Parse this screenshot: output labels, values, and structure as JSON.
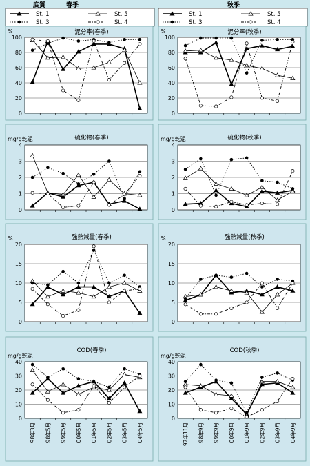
{
  "header": {
    "left_title": "底質",
    "spring": "春季",
    "autumn": "秋季"
  },
  "legend": [
    "St. 1",
    "St. 5",
    "St. 3",
    "St. 4"
  ],
  "x_labels": {
    "spring": [
      "98年3月",
      "98年5月",
      "99年5月",
      "00年5月",
      "01年5月",
      "02年5月",
      "03年5月",
      "04年5月"
    ],
    "autumn": [
      "97年11月",
      "98年9月",
      "99年9月",
      "00年9月",
      "01年9月",
      "02年9月",
      "03年9月",
      "04年9月"
    ]
  },
  "chart_data": [
    {
      "type": "line",
      "title": "泥分率(春季)",
      "unit": "%",
      "ylim": [
        0,
        100
      ],
      "yticks": [
        0,
        20,
        40,
        60,
        80,
        100
      ],
      "categories": [
        "98年3月",
        "98年5月",
        "99年5月",
        "00年5月",
        "01年5月",
        "02年5月",
        "03年5月",
        "04年5月"
      ],
      "series": [
        {
          "name": "St. 1",
          "values": [
            41,
            95,
            58,
            81,
            91,
            91,
            85,
            6
          ]
        },
        {
          "name": "St. 5",
          "values": [
            96,
            73,
            74,
            59,
            60,
            67,
            83,
            40
          ]
        },
        {
          "name": "St. 3",
          "values": [
            83,
            92,
            99,
            95,
            97,
            93,
            97,
            97
          ]
        },
        {
          "name": "St. 4",
          "values": [
            97,
            95,
            30,
            17,
            95,
            44,
            66,
            91
          ]
        }
      ]
    },
    {
      "type": "line",
      "title": "泥分率(秋季)",
      "unit": "%",
      "ylim": [
        0,
        100
      ],
      "yticks": [
        0,
        20,
        40,
        60,
        80,
        100
      ],
      "categories": [
        "97年11月",
        "98年9月",
        "99年9月",
        "00年9月",
        "01年9月",
        "02年9月",
        "03年9月",
        "04年9月"
      ],
      "series": [
        {
          "name": "St. 1",
          "values": [
            80,
            80,
            93,
            38,
            85,
            89,
            84,
            88
          ]
        },
        {
          "name": "St. 5",
          "values": [
            82,
            83,
            73,
            70,
            63,
            59,
            50,
            46
          ]
        },
        {
          "name": "St. 3",
          "values": [
            89,
            99,
            99,
            99,
            53,
            96,
            97,
            97
          ]
        },
        {
          "name": "St. 4",
          "values": [
            72,
            10,
            9,
            21,
            92,
            20,
            16,
            94
          ]
        }
      ]
    },
    {
      "type": "line",
      "title": "硫化物(春季)",
      "unit": "mg/g乾泥",
      "ylim": [
        0,
        4
      ],
      "yticks": [
        0,
        1,
        2,
        3,
        4
      ],
      "categories": [
        "98年3月",
        "98年5月",
        "99年5月",
        "00年5月",
        "01年5月",
        "02年5月",
        "03年5月",
        "04年5月"
      ],
      "series": [
        {
          "name": "St. 1",
          "values": [
            0.25,
            1.05,
            0.8,
            1.5,
            1.7,
            0.35,
            0.55,
            0.05
          ]
        },
        {
          "name": "St. 5",
          "values": [
            3.35,
            1.05,
            0.95,
            2.15,
            0.8,
            1.85,
            1.0,
            0.9
          ]
        },
        {
          "name": "St. 3",
          "values": [
            2.0,
            2.6,
            2.25,
            1.6,
            2.2,
            3.0,
            0.7,
            2.35
          ]
        },
        {
          "name": "St. 4",
          "values": [
            1.05,
            1.0,
            0.15,
            0.25,
            1.7,
            0.3,
            0.95,
            2.1
          ]
        }
      ]
    },
    {
      "type": "line",
      "title": "硫化物(秋季)",
      "unit": "mg/g乾泥",
      "ylim": [
        0,
        4
      ],
      "yticks": [
        0,
        1,
        2,
        3,
        4
      ],
      "categories": [
        "97年11月",
        "98年9月",
        "99年9月",
        "00年9月",
        "01年9月",
        "02年9月",
        "03年9月",
        "04年9月"
      ],
      "series": [
        {
          "name": "St. 1",
          "values": [
            0.35,
            0.4,
            1.2,
            0.4,
            0.2,
            1.15,
            1.05,
            1.2
          ]
        },
        {
          "name": "St. 5",
          "values": [
            1.95,
            2.55,
            1.6,
            1.3,
            0.9,
            1.4,
            0.6,
            1.15
          ]
        },
        {
          "name": "St. 3",
          "values": [
            2.5,
            3.15,
            0.9,
            3.1,
            3.2,
            1.8,
            1.7,
            1.3
          ]
        },
        {
          "name": "St. 4",
          "values": [
            1.3,
            0.25,
            0.2,
            0.5,
            0.3,
            0.4,
            0.35,
            2.4
          ]
        }
      ]
    },
    {
      "type": "line",
      "title": "強熱減量(春季)",
      "unit": "%",
      "ylim": [
        0,
        20
      ],
      "yticks": [
        0,
        5,
        10,
        15,
        20
      ],
      "categories": [
        "98年3月",
        "98年5月",
        "99年5月",
        "00年5月",
        "01年5月",
        "02年5月",
        "03年5月",
        "04年5月"
      ],
      "series": [
        {
          "name": "St. 1",
          "values": [
            4.5,
            9.0,
            7.0,
            9.0,
            9.0,
            6.5,
            8.0,
            2.2
          ]
        },
        {
          "name": "St. 5",
          "values": [
            10.5,
            6.5,
            8.0,
            7.5,
            6.5,
            9.0,
            10.0,
            8.0
          ]
        },
        {
          "name": "St. 3",
          "values": [
            10.0,
            9.5,
            13.0,
            10.0,
            18.5,
            10.0,
            12.0,
            9.0
          ]
        },
        {
          "name": "St. 4",
          "values": [
            8.5,
            4.5,
            1.5,
            3.0,
            19.5,
            5.0,
            8.0,
            8.5
          ]
        }
      ]
    },
    {
      "type": "line",
      "title": "強熱減量(秋季)",
      "unit": "%",
      "ylim": [
        0,
        20
      ],
      "yticks": [
        0,
        5,
        10,
        15,
        20
      ],
      "categories": [
        "97年11月",
        "98年9月",
        "99年9月",
        "00年9月",
        "01年9月",
        "02年9月",
        "03年9月",
        "04年9月"
      ],
      "series": [
        {
          "name": "St. 1",
          "values": [
            5.5,
            7.0,
            12.0,
            7.5,
            8.0,
            7.0,
            9.0,
            8.0
          ]
        },
        {
          "name": "St. 5",
          "values": [
            6.5,
            7.0,
            9.0,
            8.0,
            7.5,
            2.5,
            7.0,
            10.0
          ]
        },
        {
          "name": "St. 3",
          "values": [
            6.0,
            11.0,
            12.0,
            11.5,
            12.5,
            9.0,
            11.0,
            10.5
          ]
        },
        {
          "name": "St. 4",
          "values": [
            4.5,
            2.0,
            2.0,
            3.5,
            5.0,
            10.0,
            3.5,
            10.0
          ]
        }
      ]
    },
    {
      "type": "line",
      "title": "COD(春季)",
      "unit": "mg/g乾泥",
      "ylim": [
        0,
        40
      ],
      "yticks": [
        0,
        10,
        20,
        30,
        40
      ],
      "categories": [
        "98年3月",
        "98年5月",
        "99年5月",
        "00年5月",
        "01年5月",
        "02年5月",
        "03年5月",
        "04年5月"
      ],
      "series": [
        {
          "name": "St. 1",
          "values": [
            18,
            28,
            18,
            23,
            26,
            14,
            25,
            5
          ]
        },
        {
          "name": "St. 5",
          "values": [
            34,
            19,
            24,
            17,
            22,
            20,
            31,
            29
          ]
        },
        {
          "name": "St. 3",
          "values": [
            38,
            29,
            35,
            28,
            26,
            22,
            35,
            31
          ]
        },
        {
          "name": "St. 4",
          "values": [
            24,
            13,
            4,
            6,
            23,
            11,
            22,
            30
          ]
        }
      ]
    },
    {
      "type": "line",
      "title": "COD(秋季)",
      "unit": "mg/g乾泥",
      "ylim": [
        0,
        40
      ],
      "yticks": [
        0,
        10,
        20,
        30,
        40
      ],
      "categories": [
        "97年11月",
        "98年9月",
        "99年9月",
        "00年9月",
        "01年9月",
        "02年9月",
        "03年9月",
        "04年9月"
      ],
      "series": [
        {
          "name": "St. 1",
          "values": [
            18,
            22,
            26,
            14,
            3,
            24,
            25,
            18
          ]
        },
        {
          "name": "St. 5",
          "values": [
            24,
            23,
            17,
            16,
            2,
            26,
            26,
            22
          ]
        },
        {
          "name": "St. 3",
          "values": [
            26,
            38,
            27,
            25,
            4,
            29,
            32,
            27
          ]
        },
        {
          "name": "St. 4",
          "values": [
            22,
            6,
            4,
            7,
            1,
            6,
            12,
            28
          ]
        }
      ]
    }
  ]
}
